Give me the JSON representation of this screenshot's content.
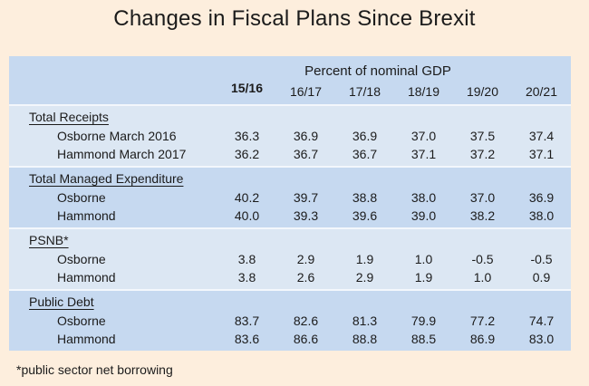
{
  "title": "Changes in Fiscal Plans Since Brexit",
  "table": {
    "subtitle": "Percent of nominal GDP",
    "columns": [
      "15/16",
      "16/17",
      "17/18",
      "18/19",
      "19/20",
      "20/21"
    ],
    "sections": [
      {
        "heading": "Total Receipts",
        "rows": [
          {
            "label": "Osborne March 2016",
            "values": [
              "36.3",
              "36.9",
              "36.9",
              "37.0",
              "37.5",
              "37.4"
            ]
          },
          {
            "label": "Hammond March 2017",
            "values": [
              "36.2",
              "36.7",
              "36.7",
              "37.1",
              "37.2",
              "37.1"
            ]
          }
        ]
      },
      {
        "heading": "Total Managed Expenditure",
        "rows": [
          {
            "label": "Osborne",
            "values": [
              "40.2",
              "39.7",
              "38.8",
              "38.0",
              "37.0",
              "36.9"
            ]
          },
          {
            "label": "Hammond",
            "values": [
              "40.0",
              "39.3",
              "39.6",
              "39.0",
              "38.2",
              "38.0"
            ]
          }
        ]
      },
      {
        "heading": "PSNB*",
        "rows": [
          {
            "label": "Osborne",
            "values": [
              "3.8",
              "2.9",
              "1.9",
              "1.0",
              "-0.5",
              "-0.5"
            ]
          },
          {
            "label": "Hammond",
            "values": [
              "3.8",
              "2.6",
              "2.9",
              "1.9",
              "1.0",
              "0.9"
            ]
          }
        ]
      },
      {
        "heading": "Public Debt",
        "rows": [
          {
            "label": "Osborne",
            "values": [
              "83.7",
              "82.6",
              "81.3",
              "79.9",
              "77.2",
              "74.7"
            ]
          },
          {
            "label": "Hammond",
            "values": [
              "83.6",
              "86.6",
              "88.8",
              "88.5",
              "86.9",
              "83.0"
            ]
          }
        ]
      }
    ]
  },
  "footnote": "*public sector net borrowing",
  "colors": {
    "background": "#fdeedd",
    "band_dark": "#c6d9f0",
    "band_light": "#dce7f3",
    "separator": "#f3f7fc",
    "text": "#1b1b1b"
  },
  "chart_data": {
    "type": "table",
    "title": "Changes in Fiscal Plans Since Brexit",
    "subtitle": "Percent of nominal GDP",
    "columns": [
      "15/16",
      "16/17",
      "17/18",
      "18/19",
      "19/20",
      "20/21"
    ],
    "sections": [
      {
        "heading": "Total Receipts",
        "series": [
          {
            "name": "Osborne March 2016",
            "values": [
              36.3,
              36.9,
              36.9,
              37.0,
              37.5,
              37.4
            ]
          },
          {
            "name": "Hammond March 2017",
            "values": [
              36.2,
              36.7,
              36.7,
              37.1,
              37.2,
              37.1
            ]
          }
        ]
      },
      {
        "heading": "Total Managed Expenditure",
        "series": [
          {
            "name": "Osborne",
            "values": [
              40.2,
              39.7,
              38.8,
              38.0,
              37.0,
              36.9
            ]
          },
          {
            "name": "Hammond",
            "values": [
              40.0,
              39.3,
              39.6,
              39.0,
              38.2,
              38.0
            ]
          }
        ]
      },
      {
        "heading": "PSNB*",
        "series": [
          {
            "name": "Osborne",
            "values": [
              3.8,
              2.9,
              1.9,
              1.0,
              -0.5,
              -0.5
            ]
          },
          {
            "name": "Hammond",
            "values": [
              3.8,
              2.6,
              2.9,
              1.9,
              1.0,
              0.9
            ]
          }
        ]
      },
      {
        "heading": "Public Debt",
        "series": [
          {
            "name": "Osborne",
            "values": [
              83.7,
              82.6,
              81.3,
              79.9,
              77.2,
              74.7
            ]
          },
          {
            "name": "Hammond",
            "values": [
              83.6,
              86.6,
              88.8,
              88.5,
              86.9,
              83.0
            ]
          }
        ]
      }
    ],
    "footnote": "*public sector net borrowing"
  }
}
